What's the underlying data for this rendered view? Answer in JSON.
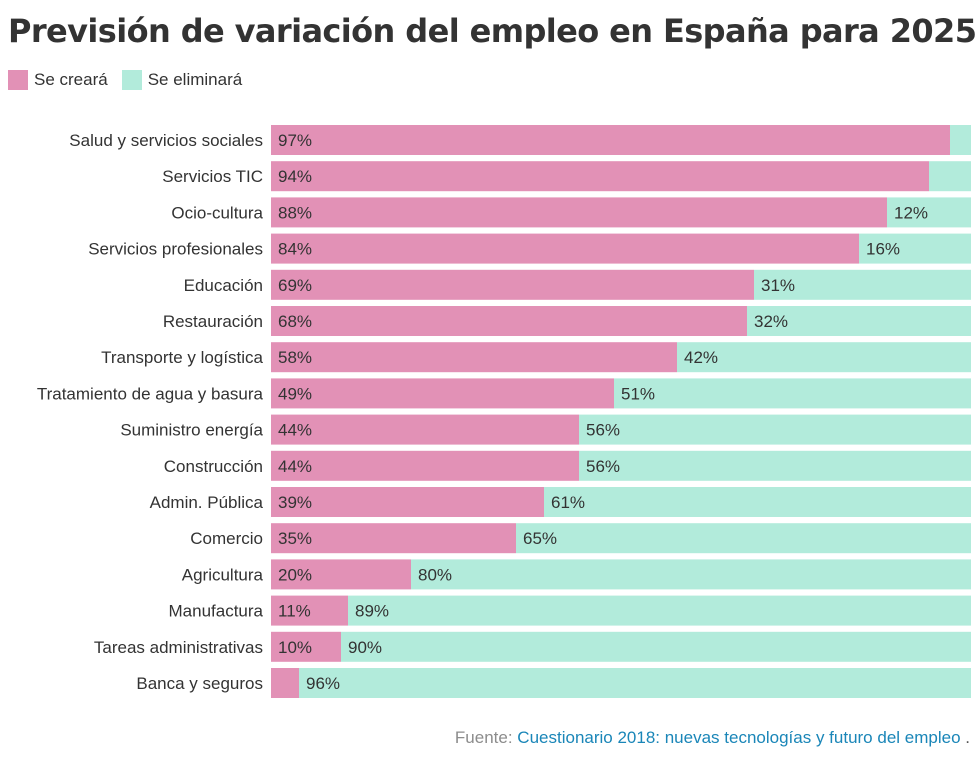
{
  "colors": {
    "create": "#e291b6",
    "eliminate": "#b2ebdb"
  },
  "chart_data": {
    "type": "bar",
    "orientation": "horizontal",
    "stacked": true,
    "title": "Previsión de variación del empleo en España para 2025",
    "legend": {
      "position": "top-left",
      "entries": [
        "Se creará",
        "Se eliminará"
      ]
    },
    "xlim": [
      0,
      100
    ],
    "grid": false,
    "categories": [
      "Salud y servicios sociales",
      "Servicios TIC",
      "Ocio-cultura",
      "Servicios profesionales",
      "Educación",
      "Restauración",
      "Transporte y logística",
      "Tratamiento de agua y basura",
      "Suministro energía",
      "Construcción",
      "Admin. Pública",
      "Comercio",
      "Agricultura",
      "Manufactura",
      "Tareas administrativas",
      "Banca y seguros"
    ],
    "series": [
      {
        "name": "Se creará",
        "values": [
          97,
          94,
          88,
          84,
          69,
          68,
          58,
          49,
          44,
          44,
          39,
          35,
          20,
          11,
          10,
          4
        ],
        "labels": [
          "97%",
          "94%",
          "88%",
          "84%",
          "69%",
          "68%",
          "58%",
          "49%",
          "44%",
          "44%",
          "39%",
          "35%",
          "20%",
          "11%",
          "10%",
          ""
        ]
      },
      {
        "name": "Se eliminará",
        "values": [
          3,
          6,
          12,
          16,
          31,
          32,
          42,
          51,
          56,
          56,
          61,
          65,
          80,
          89,
          90,
          96
        ],
        "labels": [
          "",
          "",
          "12%",
          "16%",
          "31%",
          "32%",
          "42%",
          "51%",
          "56%",
          "56%",
          "61%",
          "65%",
          "80%",
          "89%",
          "90%",
          "96%"
        ]
      }
    ]
  },
  "source": {
    "prefix": "Fuente:",
    "link_text": "Cuestionario 2018: nuevas tecnologías y futuro del empleo",
    "suffix": "."
  }
}
